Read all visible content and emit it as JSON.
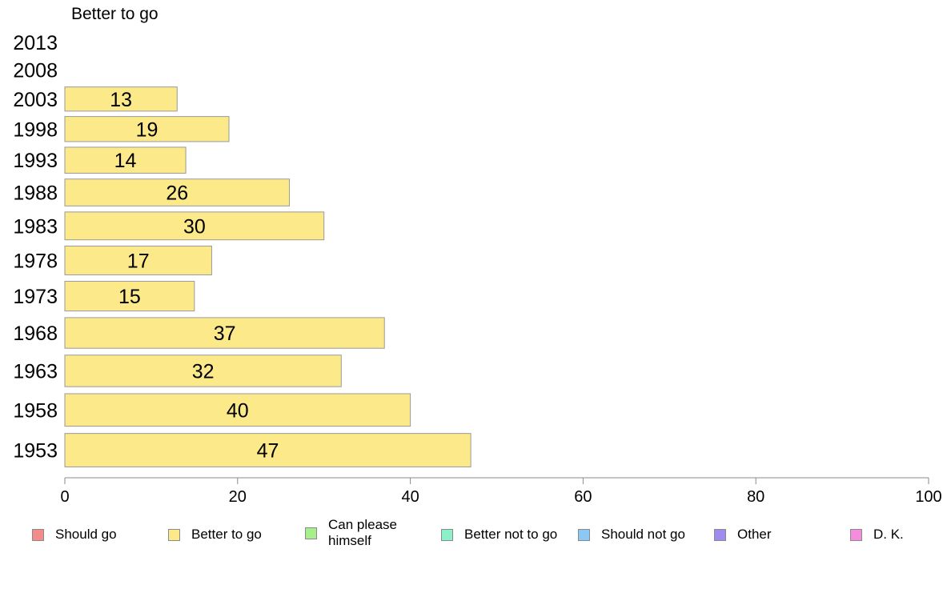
{
  "chart_data": {
    "type": "bar",
    "orientation": "horizontal",
    "panel_title": "Better to go",
    "categories": [
      "1953",
      "1958",
      "1963",
      "1968",
      "1973",
      "1978",
      "1983",
      "1988",
      "1993",
      "1998",
      "2003",
      "2008",
      "2013"
    ],
    "series": [
      {
        "name": "Better to go",
        "color": "#fbe98a",
        "values": [
          47,
          40,
          32,
          37,
          15,
          17,
          30,
          26,
          14,
          19,
          13,
          null,
          null
        ]
      }
    ],
    "xlim": [
      0,
      100
    ],
    "xticks": [
      0,
      20,
      40,
      60,
      80,
      100
    ],
    "grid": false,
    "legend_position": "bottom",
    "legend": [
      {
        "label": "Should go",
        "color": "#f58c8c"
      },
      {
        "label": "Better to go",
        "color": "#fbe98a"
      },
      {
        "label": "Can please himself",
        "color": "#a6f08c"
      },
      {
        "label": "Better not to go",
        "color": "#8cf0c8"
      },
      {
        "label": "Should not go",
        "color": "#8cc8f5"
      },
      {
        "label": "Other",
        "color": "#a08cf0"
      },
      {
        "label": "D. K.",
        "color": "#f58cdc"
      }
    ]
  }
}
